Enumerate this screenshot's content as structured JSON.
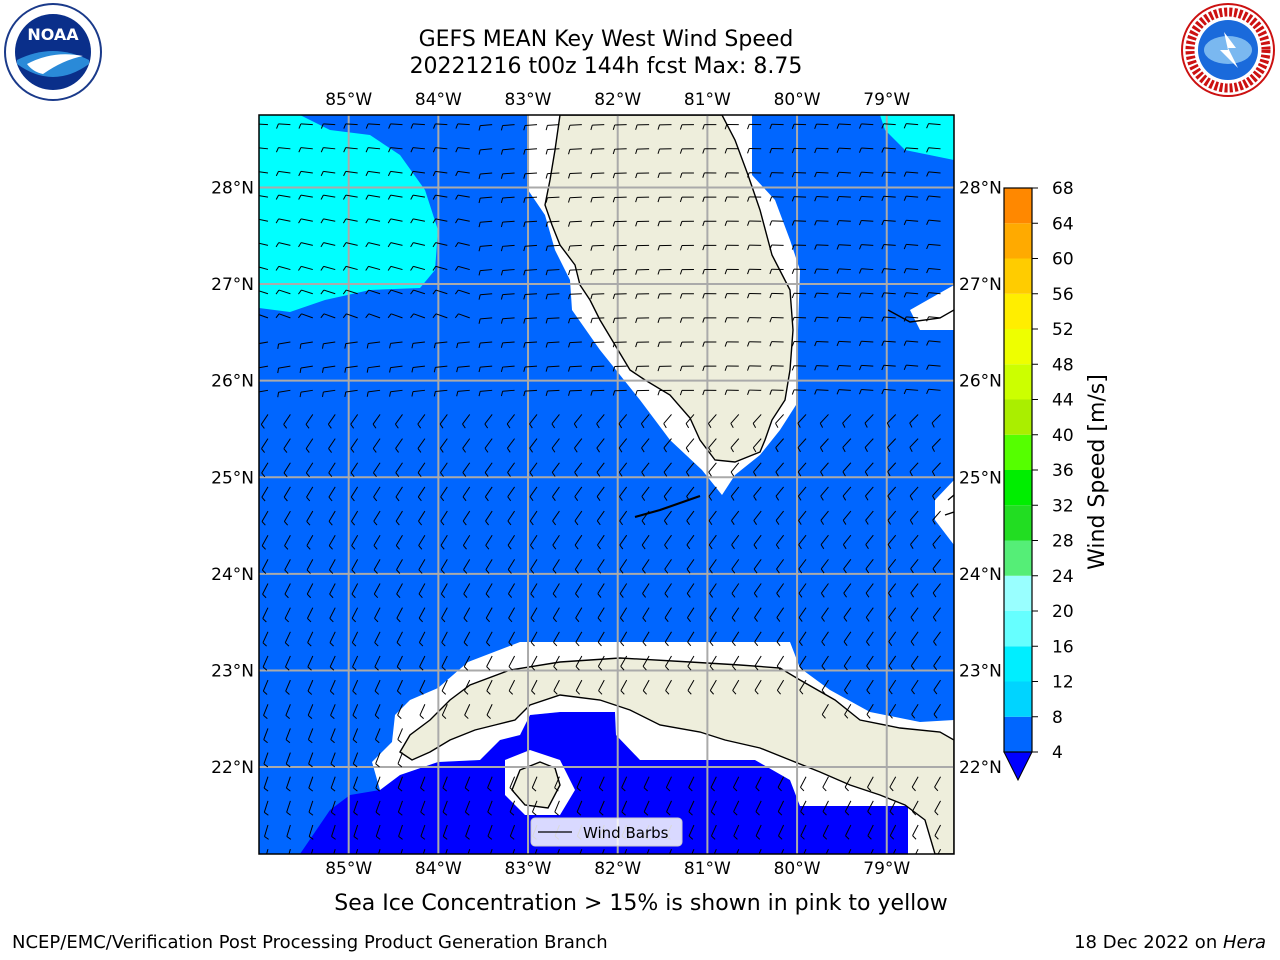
{
  "header": {
    "title_line1": "GEFS MEAN Key West Wind Speed",
    "title_line2": "20221216 t00z 144h fcst   Max: 8.75"
  },
  "caption": "Sea Ice Concentration > 15% is shown in pink to yellow",
  "footer": {
    "left": "NCEP/EMC/Verification Post Processing Product Generation Branch",
    "right_prefix": "18 Dec 2022 on ",
    "right_machine": "Hera"
  },
  "logos": {
    "noaa": "NOAA",
    "nws": "NATIONAL WEATHER SERVICE"
  },
  "chart_data": {
    "type": "heatmap",
    "xlim": [
      -86,
      -78.25
    ],
    "ylim": [
      21.1,
      28.75
    ],
    "x_ticks": [
      {
        "value": -85,
        "label": "85°W"
      },
      {
        "value": -84,
        "label": "84°W"
      },
      {
        "value": -83,
        "label": "83°W"
      },
      {
        "value": -82,
        "label": "82°W"
      },
      {
        "value": -81,
        "label": "81°W"
      },
      {
        "value": -80,
        "label": "80°W"
      },
      {
        "value": -79,
        "label": "79°W"
      }
    ],
    "y_ticks": [
      {
        "value": 28,
        "label": "28°N"
      },
      {
        "value": 27,
        "label": "27°N"
      },
      {
        "value": 26,
        "label": "26°N"
      },
      {
        "value": 25,
        "label": "25°N"
      },
      {
        "value": 24,
        "label": "24°N"
      },
      {
        "value": 23,
        "label": "23°N"
      },
      {
        "value": 22,
        "label": "22°N"
      }
    ],
    "grid": true,
    "legend": {
      "label": "Wind Barbs",
      "placement": "bottom-center"
    },
    "colorbar": {
      "label": "Wind Speed [m/s]",
      "ticks": [
        "4",
        "8",
        "12",
        "16",
        "20",
        "24",
        "28",
        "32",
        "36",
        "40",
        "44",
        "48",
        "52",
        "56",
        "60",
        "64",
        "68"
      ],
      "colors": [
        "#0066ff",
        "#00d4ff",
        "#00eeff",
        "#66ffff",
        "#99ffff",
        "#55ee77",
        "#22dd22",
        "#00ee00",
        "#55ff00",
        "#aaee00",
        "#ccff00",
        "#eeff00",
        "#ffee00",
        "#ffcc00",
        "#ffaa00",
        "#ff8800",
        "#ff6600",
        "#ff3300",
        "#ff0000"
      ],
      "extend_low_color": "#0000ff"
    },
    "fill_regions": [
      {
        "level": "8-12",
        "color": "#00ffff",
        "area": "northwest Gulf of Mexico"
      },
      {
        "level": "8-12",
        "color": "#00ffff",
        "area": "northeast corner"
      },
      {
        "level": "4-8",
        "color": "#0066ff",
        "area": "Gulf of Mexico, Straits of Florida, Atlantic"
      },
      {
        "level": "<4",
        "color": "#0000ff",
        "area": "southwest, south of Cuba"
      }
    ],
    "land_color": "#eeeedc",
    "max_value": 8.75
  }
}
